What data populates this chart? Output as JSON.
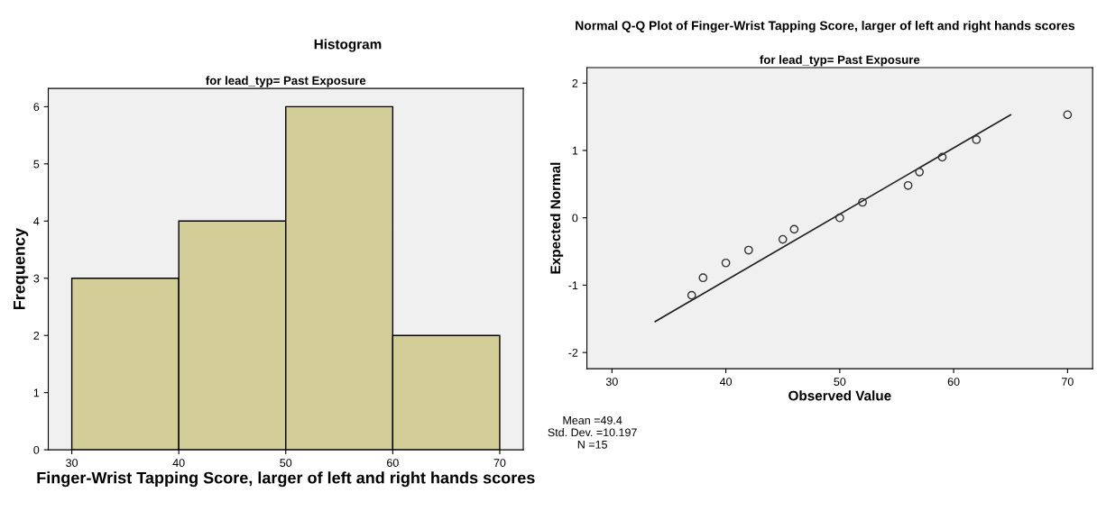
{
  "chart_data": [
    {
      "type": "histogram",
      "title": "Histogram",
      "subtitle": "for lead_typ= Past Exposure",
      "xlabel": "Finger-Wrist Tapping Score, larger of left and right hands scores",
      "ylabel": "Frequency",
      "bins": [
        30,
        40,
        50,
        60,
        70
      ],
      "values": [
        3,
        4,
        6,
        2
      ],
      "color": "#d3ce97",
      "xlim": [
        27.8,
        72.2
      ],
      "xticks": [
        30,
        40,
        50,
        60,
        70
      ],
      "ylim": [
        0,
        6.32
      ],
      "yticks": [
        0,
        1,
        2,
        3,
        4,
        5,
        6
      ],
      "grid": false
    },
    {
      "type": "scatter",
      "title": "Normal Q-Q Plot of Finger-Wrist Tapping Score, larger of left and right hands scores",
      "subtitle": "for lead_typ= Past Exposure",
      "xlabel": "Observed Value",
      "ylabel": "Expected Normal",
      "series": [
        {
          "type": "scatter",
          "marker": "circle",
          "color": "#333333",
          "x": [
            37,
            38,
            40,
            42,
            45,
            46,
            50,
            52,
            56,
            57,
            59,
            62,
            70
          ],
          "values": [
            -1.15,
            -0.89,
            -0.67,
            -0.48,
            -0.32,
            -0.17,
            0.0,
            0.23,
            0.48,
            0.68,
            0.9,
            1.16,
            1.53
          ]
        },
        {
          "type": "line",
          "color": "#222222",
          "x": [
            33.8,
            65.0
          ],
          "values": [
            -1.54,
            1.53
          ]
        }
      ],
      "xlim": [
        27.8,
        72.2
      ],
      "xticks": [
        30,
        40,
        50,
        60,
        70
      ],
      "ylim": [
        -2.24,
        2.23
      ],
      "yticks": [
        -2,
        -1,
        0,
        1,
        2
      ],
      "grid": false,
      "annotations": [
        "Mean =49.4",
        "Std. Dev. =10.197",
        "N =15"
      ]
    }
  ]
}
